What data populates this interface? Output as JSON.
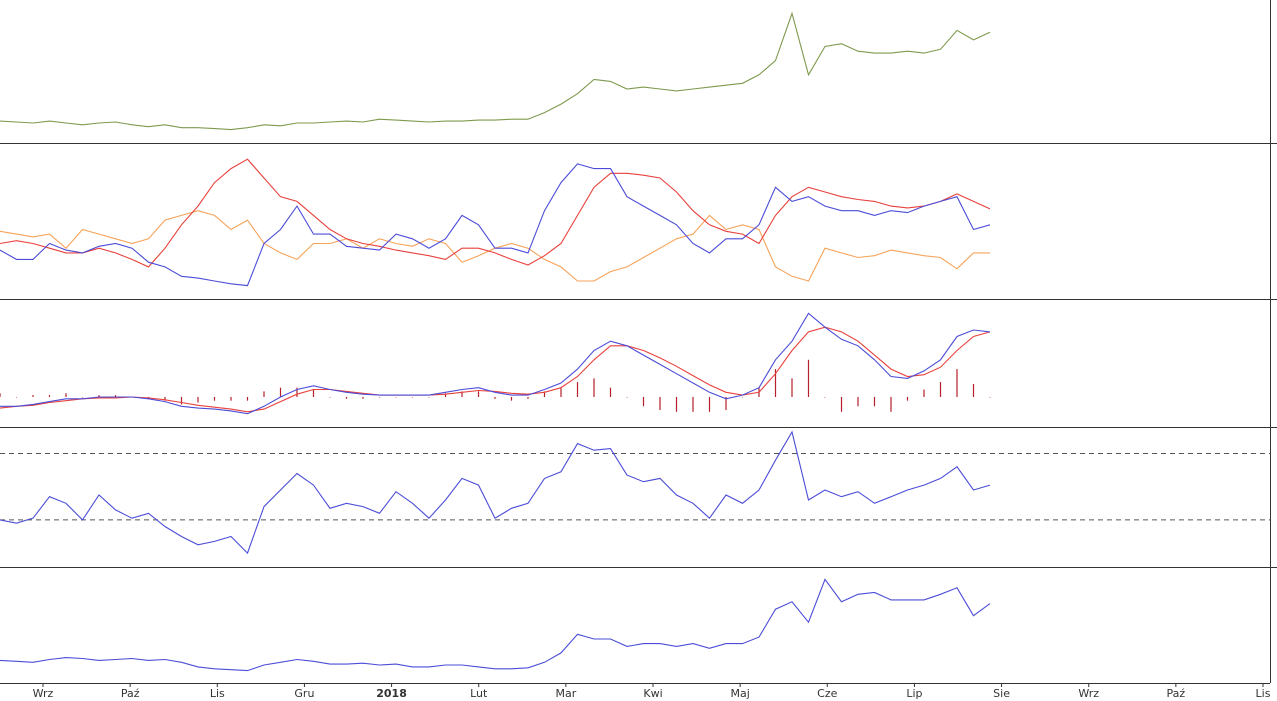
{
  "chart_data": [
    {
      "type": "line",
      "ylim": [
        0,
        143
      ],
      "series": [
        {
          "color": "#7f9a4e",
          "values": [
            19,
            18,
            17,
            19,
            17,
            15,
            17,
            18,
            15,
            13,
            15,
            12,
            12,
            11,
            10,
            12,
            15,
            14,
            17,
            17,
            18,
            19,
            18,
            21,
            20,
            19,
            18,
            19,
            19,
            20,
            20,
            21,
            21,
            28,
            37,
            48,
            63,
            61,
            53,
            55,
            53,
            51,
            53,
            55,
            57,
            59,
            68,
            83,
            133,
            68,
            98,
            101,
            93,
            91,
            91,
            93,
            91,
            95,
            115,
            105,
            113
          ]
        }
      ]
    },
    {
      "type": "line",
      "ylim": [
        0,
        157
      ],
      "series": [
        {
          "color": "#f6a35a",
          "values": [
            68,
            65,
            62,
            65,
            50,
            70,
            65,
            60,
            55,
            60,
            80,
            85,
            90,
            85,
            70,
            80,
            55,
            45,
            38,
            55,
            55,
            60,
            50,
            60,
            55,
            52,
            60,
            55,
            35,
            42,
            50,
            55,
            50,
            38,
            30,
            15,
            15,
            25,
            30,
            40,
            50,
            60,
            65,
            85,
            70,
            75,
            70,
            30,
            20,
            15,
            50,
            45,
            40,
            42,
            48,
            45,
            42,
            40,
            28,
            45,
            45
          ]
        },
        {
          "color": "#e8413c",
          "values": [
            55,
            58,
            55,
            50,
            45,
            45,
            50,
            45,
            38,
            30,
            50,
            75,
            95,
            120,
            135,
            145,
            125,
            105,
            100,
            85,
            70,
            60,
            55,
            52,
            48,
            45,
            42,
            38,
            50,
            50,
            45,
            38,
            32,
            42,
            55,
            85,
            115,
            130,
            130,
            128,
            125,
            110,
            90,
            75,
            68,
            65,
            55,
            85,
            105,
            115,
            110,
            105,
            102,
            100,
            95,
            93,
            95,
            100,
            108,
            100,
            92
          ]
        },
        {
          "color": "#4c4cd8",
          "values": [
            48,
            38,
            38,
            55,
            48,
            45,
            52,
            55,
            50,
            35,
            30,
            20,
            18,
            15,
            12,
            10,
            55,
            70,
            95,
            65,
            65,
            52,
            50,
            48,
            65,
            60,
            50,
            60,
            85,
            75,
            50,
            50,
            45,
            90,
            120,
            140,
            135,
            135,
            105,
            95,
            85,
            75,
            55,
            45,
            60,
            60,
            75,
            115,
            100,
            105,
            95,
            90,
            90,
            85,
            90,
            88,
            95,
            100,
            105,
            70,
            75
          ]
        }
      ]
    },
    {
      "type": "line",
      "ylim": [
        -28,
        100
      ],
      "histogram": {
        "color": "#b5202a",
        "values": [
          4,
          0,
          2,
          2,
          4,
          0,
          2,
          2,
          0,
          -2,
          -4,
          -8,
          -6,
          -4,
          -4,
          -4,
          6,
          10,
          10,
          8,
          0,
          -2,
          -2,
          0,
          0,
          0,
          0,
          4,
          6,
          6,
          -2,
          -4,
          -2,
          6,
          10,
          16,
          20,
          10,
          0,
          -10,
          -14,
          -16,
          -16,
          -16,
          -14,
          0,
          10,
          30,
          20,
          40,
          0,
          -16,
          -10,
          -10,
          -16,
          -4,
          8,
          16,
          30,
          14,
          0
        ]
      },
      "series": [
        {
          "color": "#e8413c",
          "values": [
            -12,
            -10,
            -9,
            -6,
            -4,
            -2,
            -1,
            -1,
            0,
            -1,
            -3,
            -6,
            -9,
            -11,
            -13,
            -16,
            -13,
            -5,
            3,
            8,
            8,
            6,
            4,
            2,
            2,
            2,
            2,
            3,
            5,
            7,
            6,
            4,
            3,
            5,
            10,
            22,
            40,
            55,
            55,
            50,
            42,
            33,
            23,
            13,
            5,
            2,
            5,
            25,
            50,
            70,
            75,
            70,
            60,
            45,
            30,
            22,
            24,
            32,
            50,
            65,
            70
          ]
        },
        {
          "color": "#4c4cd8",
          "values": [
            -10,
            -10,
            -8,
            -5,
            -2,
            -2,
            0,
            0,
            0,
            -2,
            -5,
            -10,
            -12,
            -13,
            -15,
            -18,
            -10,
            0,
            8,
            12,
            8,
            5,
            3,
            2,
            2,
            2,
            2,
            5,
            8,
            10,
            5,
            2,
            2,
            8,
            15,
            30,
            50,
            60,
            55,
            45,
            35,
            25,
            15,
            5,
            -2,
            2,
            10,
            40,
            60,
            90,
            75,
            62,
            55,
            40,
            22,
            20,
            28,
            40,
            65,
            72,
            70
          ]
        }
      ]
    },
    {
      "type": "line",
      "ylim": [
        4,
        83
      ],
      "hlines": [
        30,
        70
      ],
      "series": [
        {
          "color": "#4c4cd8",
          "values": [
            30,
            28,
            31,
            44,
            40,
            30,
            45,
            36,
            31,
            34,
            26,
            20,
            15,
            17,
            20,
            10,
            38,
            48,
            58,
            51,
            37,
            40,
            38,
            34,
            47,
            40,
            31,
            42,
            55,
            51,
            31,
            37,
            40,
            55,
            59,
            76,
            72,
            73,
            57,
            53,
            55,
            45,
            40,
            31,
            45,
            40,
            48,
            66,
            83,
            42,
            48,
            44,
            47,
            40,
            44,
            48,
            51,
            55,
            62,
            48,
            51
          ]
        }
      ]
    },
    {
      "type": "line",
      "ylim": [
        0,
        115
      ],
      "series": [
        {
          "color": "#4c4cd8",
          "values": [
            20,
            19,
            18,
            21,
            23,
            22,
            20,
            21,
            22,
            20,
            21,
            18,
            13,
            11,
            10,
            9,
            15,
            18,
            21,
            19,
            16,
            16,
            17,
            15,
            16,
            13,
            13,
            15,
            15,
            13,
            11,
            11,
            12,
            18,
            28,
            48,
            43,
            43,
            35,
            38,
            38,
            35,
            38,
            33,
            38,
            38,
            45,
            75,
            83,
            61,
            107,
            83,
            91,
            93,
            85,
            85,
            85,
            91,
            98,
            68,
            81
          ]
        }
      ]
    }
  ],
  "x_axis_labels": [
    "Wrz",
    "Paź",
    "Lis",
    "Gru",
    "2018",
    "Lut",
    "Mar",
    "Kwi",
    "Maj",
    "Cze",
    "Lip",
    "Sie",
    "Wrz",
    "Paź",
    "Lis"
  ]
}
